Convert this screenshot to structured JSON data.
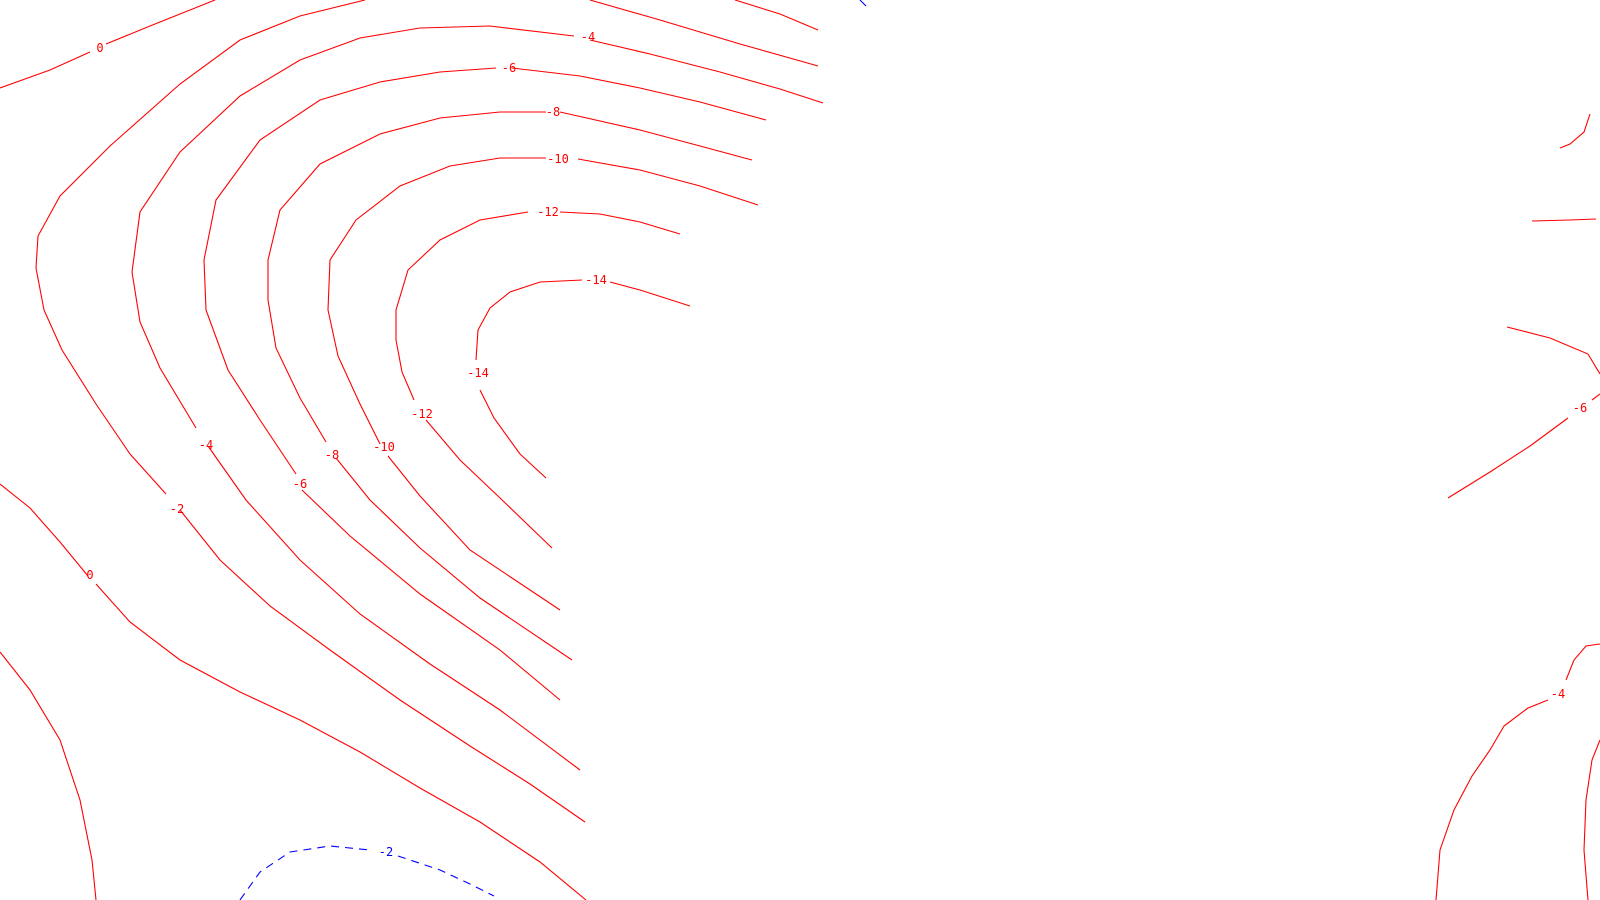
{
  "chart_data": {
    "type": "contour",
    "colors": {
      "positive_or_zero": "#ff0000",
      "negative_dashed": "#0000ff",
      "background": "#ffffff"
    },
    "contour_labels": [
      {
        "text": "0",
        "level": 0,
        "style": "solid"
      },
      {
        "text": "-4",
        "level": -4,
        "style": "solid"
      },
      {
        "text": "-6",
        "level": -6,
        "style": "solid"
      },
      {
        "text": "-8",
        "level": -8,
        "style": "solid"
      },
      {
        "text": "-10",
        "level": -10,
        "style": "solid"
      },
      {
        "text": "-12",
        "level": -12,
        "style": "solid"
      },
      {
        "text": "-14",
        "level": -14,
        "style": "solid"
      },
      {
        "text": "-14",
        "level": -14,
        "style": "solid"
      },
      {
        "text": "-12",
        "level": -12,
        "style": "solid"
      },
      {
        "text": "-4",
        "level": -4,
        "style": "solid"
      },
      {
        "text": "-10",
        "level": -10,
        "style": "solid"
      },
      {
        "text": "-8",
        "level": -8,
        "style": "solid"
      },
      {
        "text": "-6",
        "level": -6,
        "style": "solid"
      },
      {
        "text": "-2",
        "level": -2,
        "style": "solid"
      },
      {
        "text": "0",
        "level": 0,
        "style": "solid"
      },
      {
        "text": "-2",
        "level": -2,
        "style": "dashed"
      },
      {
        "text": "-6",
        "level": -6,
        "style": "solid"
      },
      {
        "text": "-4",
        "level": -4,
        "style": "solid"
      }
    ]
  }
}
